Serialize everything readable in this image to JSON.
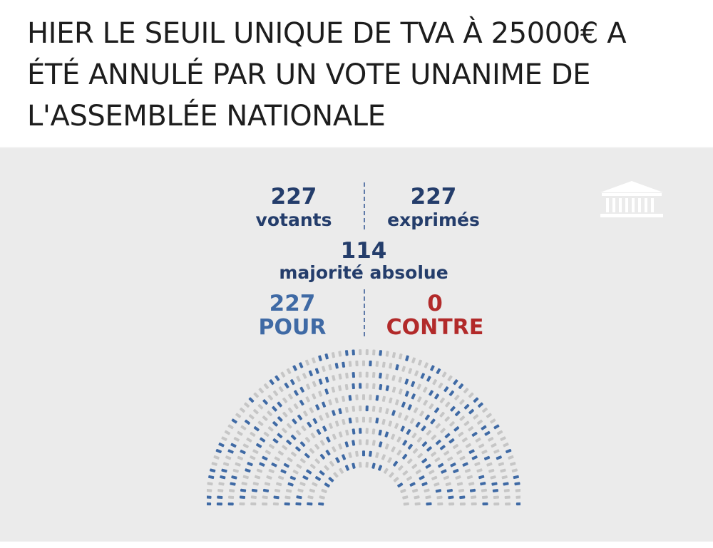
{
  "headline": {
    "lines": [
      "HIER LE SEUIL UNIQUE DE TVA À 25000€ A",
      "ÉTÉ ANNULÉ PAR UN VOTE UNANIME DE",
      "L'ASSEMBLÉE NATIONALE"
    ]
  },
  "results": {
    "votants": {
      "value": "227",
      "label": "votants"
    },
    "exprimes": {
      "value": "227",
      "label": "exprimés"
    },
    "majorite": {
      "value": "114",
      "label": "majorité absolue"
    },
    "pour": {
      "value": "227",
      "label": "POUR"
    },
    "contre": {
      "value": "0",
      "label": "CONTRE"
    }
  },
  "hemicycle": {
    "pour_seats": 227,
    "total_seats": 577,
    "colors": {
      "pour": "#3f6aa5",
      "empty": "#c6c6c6"
    }
  },
  "icons": {
    "assembly": "assembly-building-icon"
  }
}
